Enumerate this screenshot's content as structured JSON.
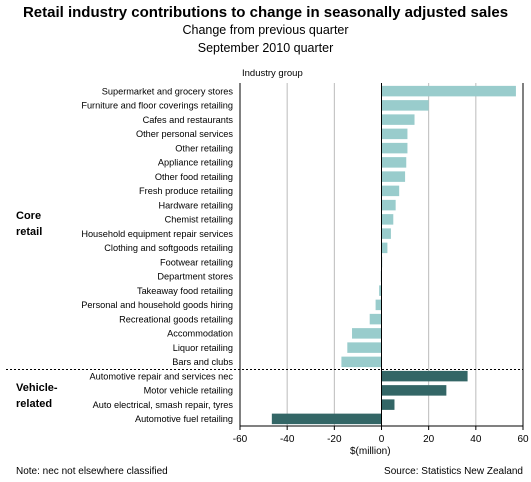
{
  "header": {
    "title": "Retail industry contributions to change in seasonally adjusted sales",
    "subtitle1": "Change from previous quarter",
    "subtitle2": "September 2010 quarter"
  },
  "groups": {
    "header": "Industry group",
    "core_line1": "Core",
    "core_line2": "retail",
    "vehicle_line1": "Vehicle-",
    "vehicle_line2": "related"
  },
  "footer": {
    "note": "Note: nec  not elsewhere classified",
    "source": "Source: Statistics New Zealand"
  },
  "chart_data": {
    "type": "bar",
    "orientation": "horizontal",
    "xlabel": "$(million)",
    "xlim": [
      -60,
      60
    ],
    "xticks": [
      -60,
      -40,
      -20,
      0,
      20,
      40,
      60
    ],
    "grid": true,
    "categories": [
      "Supermarket and grocery stores",
      "Furniture and floor coverings retailing",
      "Cafes and restaurants",
      "Other personal services",
      "Other retailing",
      "Appliance retailing",
      "Other food retailing",
      "Fresh produce retailing",
      "Hardware retailing",
      "Chemist retailing",
      "Household equipment repair services",
      "Clothing and softgoods retailing",
      "Footwear retailing",
      "Department stores",
      "Takeaway food retailing",
      "Personal and household goods hiring",
      "Recreational goods retailing",
      "Accommodation",
      "Liquor retailing",
      "Bars and clubs",
      "Automotive repair and services nec",
      "Motor vehicle retailing",
      "Auto electrical, smash repair, tyres",
      "Automotive fuel retailing"
    ],
    "values": [
      57,
      20,
      14,
      11,
      11,
      10.5,
      10,
      7.5,
      6,
      5,
      4,
      2.5,
      0.3,
      -0.3,
      -1,
      -2.5,
      -5,
      -12.5,
      -14.5,
      -17,
      36.5,
      27.5,
      5.5,
      -46.5
    ],
    "groups": [
      "core",
      "core",
      "core",
      "core",
      "core",
      "core",
      "core",
      "core",
      "core",
      "core",
      "core",
      "core",
      "core",
      "core",
      "core",
      "core",
      "core",
      "core",
      "core",
      "core",
      "vehicle",
      "vehicle",
      "vehicle",
      "vehicle"
    ],
    "colors": {
      "core": "#99cccc",
      "vehicle": "#336666"
    }
  }
}
